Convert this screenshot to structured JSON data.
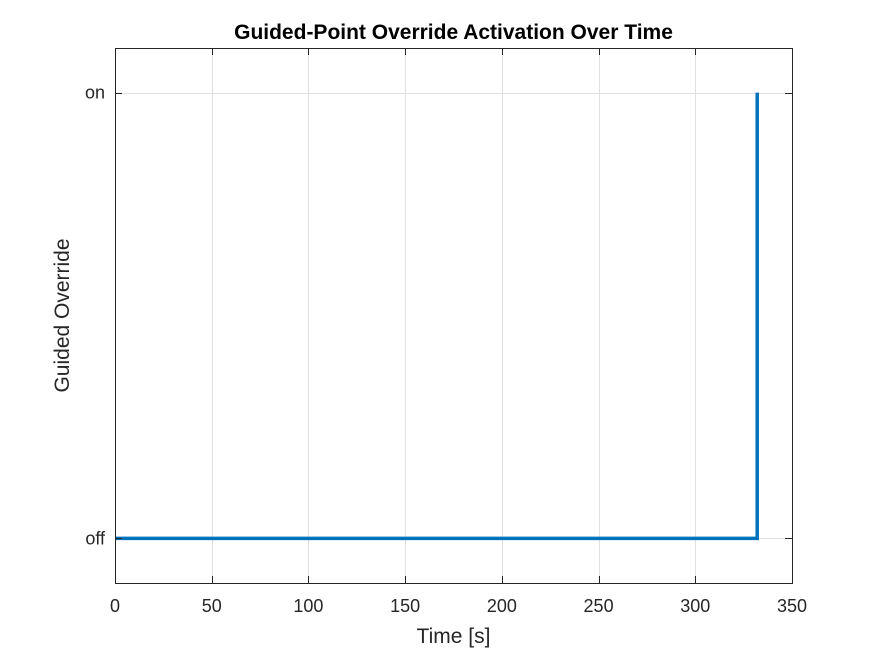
{
  "chart_data": {
    "type": "line",
    "title": "Guided-Point Override Activation Over Time",
    "xlabel": "Time [s]",
    "ylabel": "Guided Override",
    "xlim": [
      0,
      350
    ],
    "ylim": [
      -0.1,
      1.1
    ],
    "x_ticks": [
      0,
      50,
      100,
      150,
      200,
      250,
      300,
      350
    ],
    "y_ticks": [
      {
        "value": 0,
        "label": "off"
      },
      {
        "value": 1,
        "label": "on"
      }
    ],
    "grid": true,
    "series": [
      {
        "step": "post",
        "color": "#0072BD",
        "points": [
          {
            "x": 0,
            "y": 0
          },
          {
            "x": 332,
            "y": 0
          },
          {
            "x": 332,
            "y": 1
          }
        ]
      }
    ]
  }
}
